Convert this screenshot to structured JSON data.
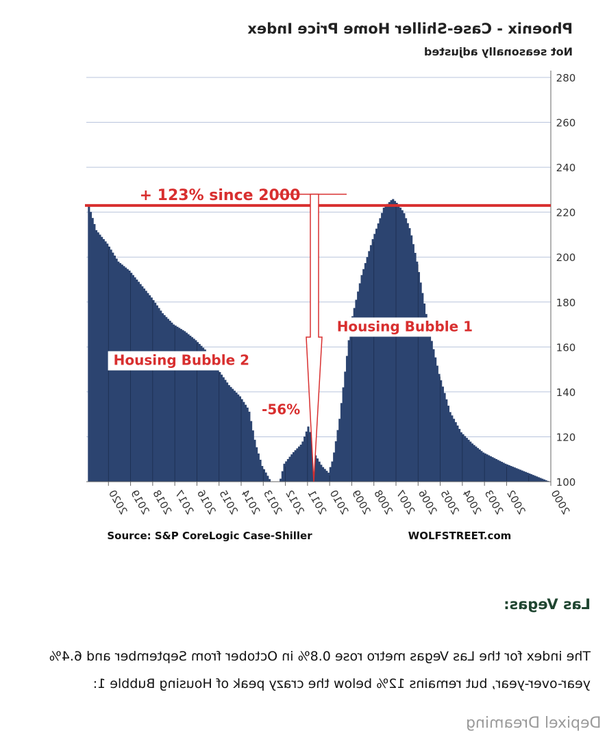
{
  "chart_data": {
    "type": "area",
    "title": "Phoenix - Case-Shiller Home Price Index",
    "subtitle": "Not seasonally adjusted",
    "x_start": 2000,
    "y_range": [
      100,
      280
    ],
    "y_ticks": [
      100,
      120,
      140,
      160,
      180,
      200,
      220,
      240,
      260,
      280
    ],
    "x_tick_labels": [
      "2000",
      "2002",
      "2003",
      "2004",
      "2005",
      "2006",
      "2007",
      "2008",
      "2009",
      "2010",
      "2011",
      "2012",
      "2013",
      "2014",
      "2015",
      "2016",
      "2017",
      "2018",
      "2019",
      "2020"
    ],
    "keypoints": [
      [
        2000,
        100
      ],
      [
        2000.5,
        102
      ],
      [
        2001,
        104
      ],
      [
        2001.5,
        106
      ],
      [
        2002,
        108
      ],
      [
        2002.5,
        110.5
      ],
      [
        2003,
        113
      ],
      [
        2003.5,
        117
      ],
      [
        2004,
        122
      ],
      [
        2004.5,
        131
      ],
      [
        2005,
        148
      ],
      [
        2005.5,
        170
      ],
      [
        2006,
        198
      ],
      [
        2006.3,
        212
      ],
      [
        2006.6,
        220
      ],
      [
        2006.9,
        224
      ],
      [
        2007.1,
        226
      ],
      [
        2007.5,
        222
      ],
      [
        2008,
        208
      ],
      [
        2008.5,
        192
      ],
      [
        2009,
        170
      ],
      [
        2009.5,
        128
      ],
      [
        2009.8,
        110
      ],
      [
        2010,
        104
      ],
      [
        2010.3,
        107
      ],
      [
        2010.6,
        112
      ],
      [
        2010.9,
        125
      ],
      [
        2011.2,
        117
      ],
      [
        2011.6,
        113
      ],
      [
        2012,
        108
      ],
      [
        2012.2,
        100
      ],
      [
        2012.6,
        100
      ],
      [
        2013,
        107
      ],
      [
        2013.3,
        117
      ],
      [
        2013.6,
        132
      ],
      [
        2014,
        138
      ],
      [
        2014.5,
        143
      ],
      [
        2015,
        150
      ],
      [
        2015.5,
        158
      ],
      [
        2016,
        163
      ],
      [
        2016.5,
        167
      ],
      [
        2017,
        170
      ],
      [
        2017.5,
        175
      ],
      [
        2018,
        182
      ],
      [
        2018.5,
        188
      ],
      [
        2019,
        194
      ],
      [
        2019.5,
        198
      ],
      [
        2020,
        206
      ],
      [
        2020.5,
        212
      ],
      [
        2020.9,
        225
      ]
    ],
    "reference_line": {
      "value": 223,
      "label": "+ 123% since 2000"
    },
    "annotations": [
      {
        "text": "Housing Bubble 1",
        "x": 2006.6,
        "y": 167
      },
      {
        "text": "Housing Bubble 2",
        "x": 2016.7,
        "y": 152
      },
      {
        "text": "-56%",
        "x": 2012.2,
        "y": 130
      }
    ],
    "colors": {
      "area": "#2c4470",
      "reference": "#d82f2f",
      "annotation": "#d82f2f",
      "grid": "#b8c4dc"
    },
    "grid": true
  },
  "credits": {
    "source": "Source: S&P CoreLogic Case-Shiller",
    "site": "WOLFSTREET.com"
  },
  "section": {
    "heading": "Las Vegas:",
    "paragraph": "The index for the Las Vegas metro rose 0.8% in October from September and 6.4% year-over-year, but remains 12% below the crazy peak of Housing Bubble 1:"
  },
  "watermark": "Depixel Dreaming"
}
